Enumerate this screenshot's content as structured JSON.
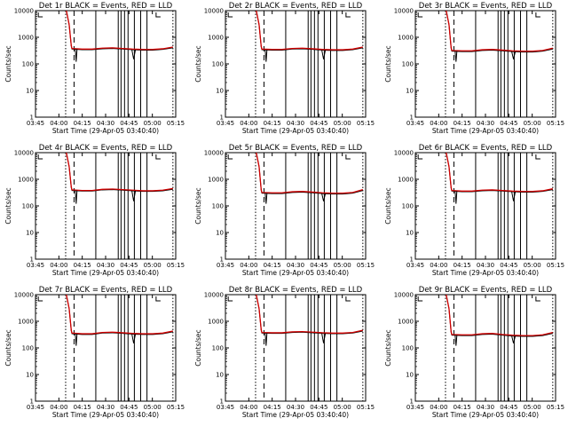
{
  "chart_data": [
    {
      "type": "line",
      "title": "Det 1r BLACK = Events, RED = LLD",
      "xlabel": "Start Time (29-Apr-05 03:40:40)",
      "ylabel": "Counts/sec",
      "x_ticks": [
        "03:45",
        "04:00",
        "04:15",
        "04:30",
        "04:45",
        "05:00",
        "05:15"
      ],
      "y_ticks": [
        "1",
        "10",
        "100",
        "1000",
        "10000"
      ],
      "ylim": [
        1,
        10000
      ],
      "y_scale": "log",
      "series": [
        {
          "color": "#000000",
          "y": [
            360,
            340,
            340,
            370,
            380,
            360,
            340,
            330,
            330,
            350,
            400
          ]
        },
        {
          "color": "#d00000",
          "y": [
            380,
            360,
            360,
            390,
            400,
            380,
            360,
            350,
            350,
            370,
            430
          ]
        }
      ]
    },
    {
      "type": "line",
      "title": "Det 2r BLACK = Events, RED = LLD",
      "xlabel": "Start Time (29-Apr-05 03:40:40)",
      "ylabel": "Counts/sec",
      "x_ticks": [
        "03:45",
        "04:00",
        "04:15",
        "04:30",
        "04:45",
        "05:00",
        "05:15"
      ],
      "y_ticks": [
        "1",
        "10",
        "100",
        "1000",
        "10000"
      ],
      "ylim": [
        1,
        10000
      ],
      "y_scale": "log",
      "series": [
        {
          "color": "#000000",
          "y": [
            340,
            330,
            330,
            360,
            370,
            350,
            330,
            320,
            320,
            340,
            400
          ]
        },
        {
          "color": "#d00000",
          "y": [
            360,
            350,
            350,
            380,
            390,
            370,
            350,
            340,
            340,
            360,
            430
          ]
        }
      ]
    },
    {
      "type": "line",
      "title": "Det 3r BLACK = Events, RED = LLD",
      "xlabel": "Start Time (29-Apr-05 03:40:40)",
      "ylabel": "Counts/sec",
      "x_ticks": [
        "03:45",
        "04:00",
        "04:15",
        "04:30",
        "04:45",
        "05:00",
        "05:15"
      ],
      "y_ticks": [
        "1",
        "10",
        "100",
        "1000",
        "10000"
      ],
      "ylim": [
        1,
        10000
      ],
      "y_scale": "log",
      "series": [
        {
          "color": "#000000",
          "y": [
            300,
            290,
            290,
            320,
            330,
            310,
            290,
            280,
            280,
            300,
            360
          ]
        },
        {
          "color": "#d00000",
          "y": [
            320,
            310,
            310,
            340,
            350,
            330,
            310,
            300,
            300,
            320,
            390
          ]
        }
      ]
    },
    {
      "type": "line",
      "title": "Det 4r BLACK = Events, RED = LLD",
      "xlabel": "Start Time (29-Apr-05 03:40:40)",
      "ylabel": "Counts/sec",
      "x_ticks": [
        "03:45",
        "04:00",
        "04:15",
        "04:30",
        "04:45",
        "05:00",
        "05:15"
      ],
      "y_ticks": [
        "1",
        "10",
        "100",
        "1000",
        "10000"
      ],
      "ylim": [
        1,
        10000
      ],
      "y_scale": "log",
      "series": [
        {
          "color": "#000000",
          "y": [
            380,
            360,
            360,
            400,
            410,
            390,
            370,
            350,
            350,
            370,
            420
          ]
        },
        {
          "color": "#d00000",
          "y": [
            400,
            380,
            380,
            420,
            430,
            410,
            390,
            370,
            370,
            390,
            450
          ]
        }
      ]
    },
    {
      "type": "line",
      "title": "Det 5r BLACK = Events, RED = LLD",
      "xlabel": "Start Time (29-Apr-05 03:40:40)",
      "ylabel": "Counts/sec",
      "x_ticks": [
        "03:45",
        "04:00",
        "04:15",
        "04:30",
        "04:45",
        "05:00",
        "05:15"
      ],
      "y_ticks": [
        "1",
        "10",
        "100",
        "1000",
        "10000"
      ],
      "ylim": [
        1,
        10000
      ],
      "y_scale": "log",
      "series": [
        {
          "color": "#000000",
          "y": [
            300,
            290,
            290,
            320,
            330,
            310,
            290,
            280,
            280,
            300,
            380
          ]
        },
        {
          "color": "#d00000",
          "y": [
            320,
            310,
            310,
            340,
            350,
            330,
            310,
            300,
            300,
            320,
            410
          ]
        }
      ]
    },
    {
      "type": "line",
      "title": "Det 6r BLACK = Events, RED = LLD",
      "xlabel": "Start Time (29-Apr-05 03:40:40)",
      "ylabel": "Counts/sec",
      "x_ticks": [
        "03:45",
        "04:00",
        "04:15",
        "04:30",
        "04:45",
        "05:00",
        "05:15"
      ],
      "y_ticks": [
        "1",
        "10",
        "100",
        "1000",
        "10000"
      ],
      "ylim": [
        1,
        10000
      ],
      "y_scale": "log",
      "series": [
        {
          "color": "#000000",
          "y": [
            360,
            340,
            340,
            370,
            380,
            360,
            340,
            330,
            330,
            350,
            410
          ]
        },
        {
          "color": "#d00000",
          "y": [
            380,
            360,
            360,
            390,
            400,
            380,
            360,
            350,
            350,
            370,
            440
          ]
        }
      ]
    },
    {
      "type": "line",
      "title": "Det 7r BLACK = Events, RED = LLD",
      "xlabel": "Start Time (29-Apr-05 03:40:40)",
      "ylabel": "Counts/sec",
      "x_ticks": [
        "03:45",
        "04:00",
        "04:15",
        "04:30",
        "04:45",
        "05:00",
        "05:15"
      ],
      "y_ticks": [
        "1",
        "10",
        "100",
        "1000",
        "10000"
      ],
      "ylim": [
        1,
        10000
      ],
      "y_scale": "log",
      "series": [
        {
          "color": "#000000",
          "y": [
            340,
            320,
            320,
            360,
            370,
            350,
            330,
            320,
            320,
            340,
            400
          ]
        },
        {
          "color": "#d00000",
          "y": [
            360,
            340,
            340,
            380,
            390,
            370,
            350,
            340,
            340,
            360,
            430
          ]
        }
      ]
    },
    {
      "type": "line",
      "title": "Det 8r BLACK = Events, RED = LLD",
      "xlabel": "Start Time (29-Apr-05 03:40:40)",
      "ylabel": "Counts/sec",
      "x_ticks": [
        "03:45",
        "04:00",
        "04:15",
        "04:30",
        "04:45",
        "05:00",
        "05:15"
      ],
      "y_ticks": [
        "1",
        "10",
        "100",
        "1000",
        "10000"
      ],
      "ylim": [
        1,
        10000
      ],
      "y_scale": "log",
      "series": [
        {
          "color": "#000000",
          "y": [
            360,
            350,
            350,
            380,
            390,
            370,
            350,
            340,
            340,
            360,
            430
          ]
        },
        {
          "color": "#d00000",
          "y": [
            380,
            370,
            370,
            400,
            410,
            390,
            370,
            360,
            360,
            380,
            460
          ]
        }
      ]
    },
    {
      "type": "line",
      "title": "Det 9r BLACK = Events, RED = LLD",
      "xlabel": "Start Time (29-Apr-05 03:40:40)",
      "ylabel": "Counts/sec",
      "x_ticks": [
        "03:45",
        "04:00",
        "04:15",
        "04:30",
        "04:45",
        "05:00",
        "05:15"
      ],
      "y_ticks": [
        "1",
        "10",
        "100",
        "1000",
        "10000"
      ],
      "ylim": [
        1,
        10000
      ],
      "y_scale": "log",
      "series": [
        {
          "color": "#000000",
          "y": [
            300,
            290,
            290,
            320,
            330,
            300,
            280,
            270,
            270,
            290,
            350
          ]
        },
        {
          "color": "#d00000",
          "y": [
            320,
            310,
            310,
            340,
            350,
            320,
            300,
            290,
            290,
            310,
            380
          ]
        }
      ]
    }
  ]
}
